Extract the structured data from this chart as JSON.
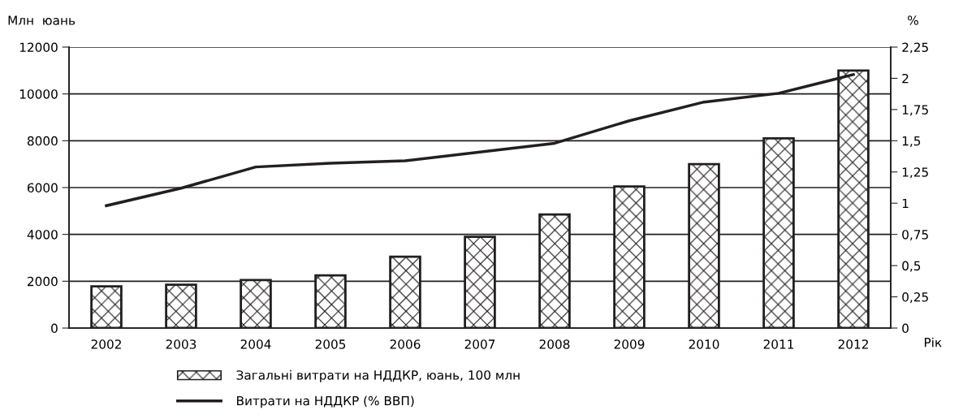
{
  "chart_data": {
    "type": "bar",
    "ylabel": "Млн  юань",
    "y2label": "%",
    "xlabel": "Рік",
    "categories": [
      "2002",
      "2003",
      "2004",
      "2005",
      "2006",
      "2007",
      "2008",
      "2009",
      "2010",
      "2011",
      "2012"
    ],
    "series": [
      {
        "name": "Загальні витрати на НДДКР, юань, 100 млн",
        "color": "#231f20",
        "values": [
          1780,
          1850,
          2050,
          2250,
          3050,
          3900,
          4850,
          6050,
          7000,
          8100,
          11000
        ]
      },
      {
        "name": "Витрати на НДДКР (% ВВП)",
        "type": "line",
        "axis": "y2",
        "color": "#231f20",
        "values": [
          0.98,
          1.12,
          1.29,
          1.32,
          1.34,
          1.41,
          1.48,
          1.66,
          1.81,
          1.88,
          2.03
        ]
      }
    ],
    "ylim": [
      0,
      12000
    ],
    "yticks": [
      0,
      2000,
      4000,
      6000,
      8000,
      10000,
      12000
    ],
    "y2lim": [
      0,
      2.25
    ],
    "y2ticks": [
      {
        "value": 0,
        "label": "0"
      },
      {
        "value": 0.25,
        "label": "0,25"
      },
      {
        "value": 0.5,
        "label": "0,5"
      },
      {
        "value": 0.75,
        "label": "0,75"
      },
      {
        "value": 1,
        "label": "1"
      },
      {
        "value": 1.25,
        "label": "1,25"
      },
      {
        "value": 1.5,
        "label": "1,5"
      },
      {
        "value": 1.75,
        "label": "1,75"
      },
      {
        "value": 2,
        "label": "2"
      },
      {
        "value": 2.25,
        "label": "2,25"
      }
    ],
    "grid": "y",
    "legend": "bottom",
    "marker": "none",
    "line_style": "solid"
  }
}
